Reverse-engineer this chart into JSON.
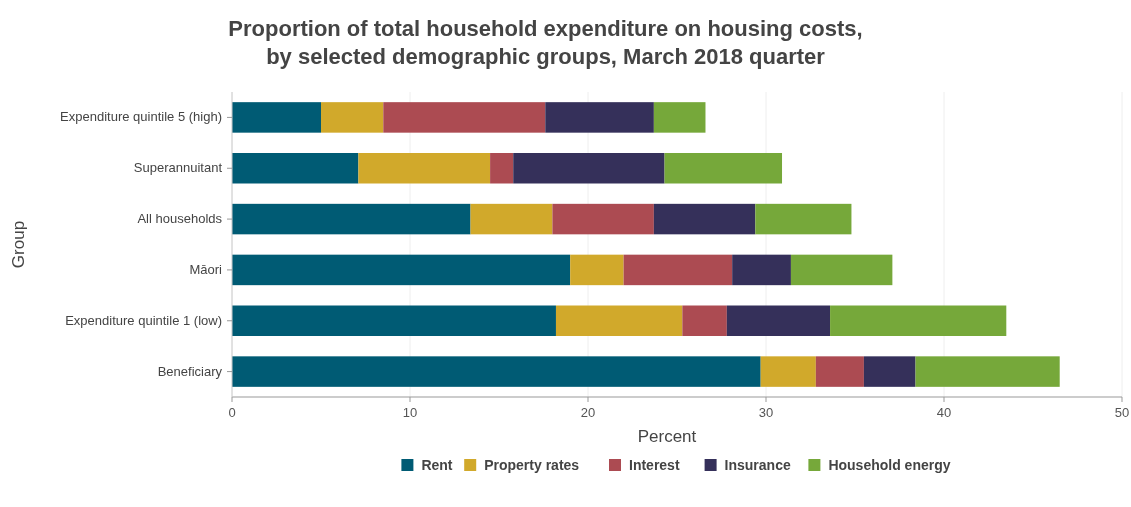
{
  "chart_data": {
    "type": "bar",
    "orientation": "horizontal",
    "stacked": true,
    "title": "Proportion of total household expenditure on housing costs,\nby selected demographic groups, March 2018 quarter",
    "xlabel": "Percent",
    "ylabel": "Group",
    "categories": [
      "Expenditure quintile 5 (high)",
      "Superannuitant",
      "All households",
      "Māori",
      "Expenditure quintile 1 (low)",
      "Beneficiary"
    ],
    "series": [
      {
        "name": "Rent",
        "color": "#005b74",
        "values": [
          5.0,
          7.1,
          13.4,
          19.0,
          18.2,
          29.7
        ]
      },
      {
        "name": "Property rates",
        "color": "#d1a92b",
        "values": [
          3.5,
          7.4,
          4.6,
          3.0,
          7.1,
          3.1
        ]
      },
      {
        "name": "Interest",
        "color": "#ac4b52",
        "values": [
          9.1,
          1.3,
          5.7,
          6.1,
          2.5,
          2.7
        ]
      },
      {
        "name": "Insurance",
        "color": "#35305a",
        "values": [
          6.1,
          8.5,
          5.7,
          3.3,
          5.8,
          2.9
        ]
      },
      {
        "name": "Household energy",
        "color": "#76a83a",
        "values": [
          2.9,
          6.6,
          5.4,
          5.7,
          9.9,
          8.1
        ]
      }
    ],
    "xlim": [
      0,
      50
    ],
    "xticks": [
      0,
      10,
      20,
      30,
      40,
      50
    ],
    "grid": "x",
    "legend": "bottom"
  }
}
